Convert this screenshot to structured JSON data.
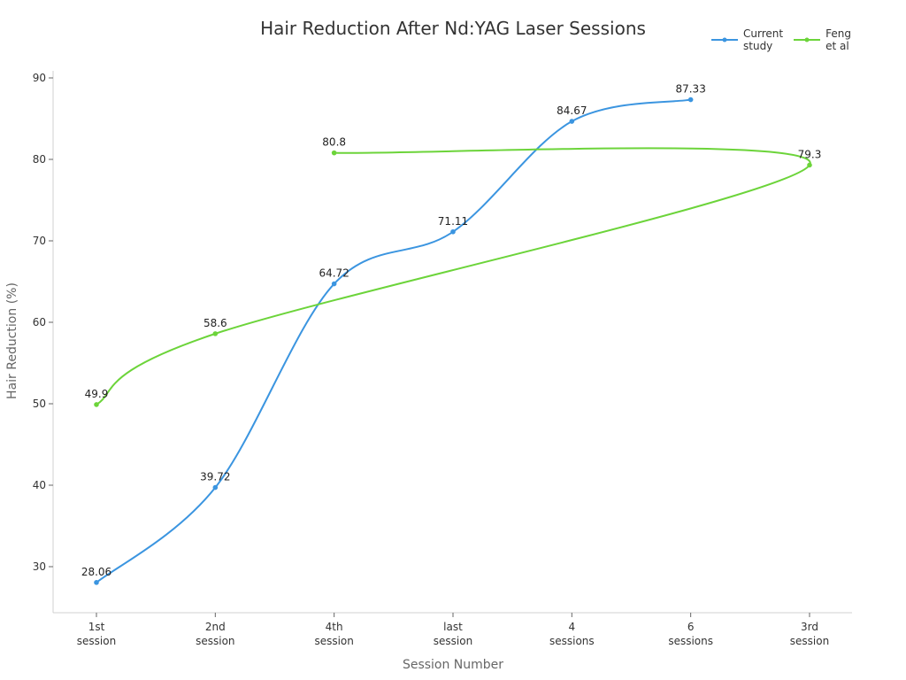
{
  "chart_data": {
    "type": "line",
    "title": "Hair Reduction After Nd:YAG Laser Sessions",
    "xlabel": "Session Number",
    "ylabel": "Hair Reduction (%)",
    "ylim": [
      25,
      91
    ],
    "yticks": [
      30,
      40,
      50,
      60,
      70,
      80,
      90
    ],
    "grid": false,
    "legend_position": "top-right",
    "categories": [
      "1st session",
      "2nd session",
      "4th session",
      "last session",
      "4 sessions",
      "6 sessions",
      "3rd session"
    ],
    "series": [
      {
        "name": "Current study",
        "color": "#3b95e0",
        "points": [
          {
            "x": "1st session",
            "y": 28.06
          },
          {
            "x": "2nd session",
            "y": 39.72
          },
          {
            "x": "4th session",
            "y": 64.72
          },
          {
            "x": "last session",
            "y": 71.11
          },
          {
            "x": "4 sessions",
            "y": 84.67
          },
          {
            "x": "6 sessions",
            "y": 87.33
          }
        ]
      },
      {
        "name": "Feng et al",
        "color": "#6cd43a",
        "points": [
          {
            "x": "1st session",
            "y": 49.9
          },
          {
            "x": "2nd session",
            "y": 58.6
          },
          {
            "x": "3rd session",
            "y": 79.3
          },
          {
            "x": "4th session",
            "y": 80.8
          }
        ]
      }
    ]
  },
  "legend": {
    "items": [
      {
        "label": "Current\nstudy",
        "color": "#3b95e0"
      },
      {
        "label": "Feng\net al",
        "color": "#6cd43a"
      }
    ]
  },
  "x_tick_lines": [
    [
      "1st",
      "session"
    ],
    [
      "2nd",
      "session"
    ],
    [
      "4th",
      "session"
    ],
    [
      "last",
      "session"
    ],
    [
      "4",
      "sessions"
    ],
    [
      "6",
      "sessions"
    ],
    [
      "3rd",
      "session"
    ]
  ]
}
